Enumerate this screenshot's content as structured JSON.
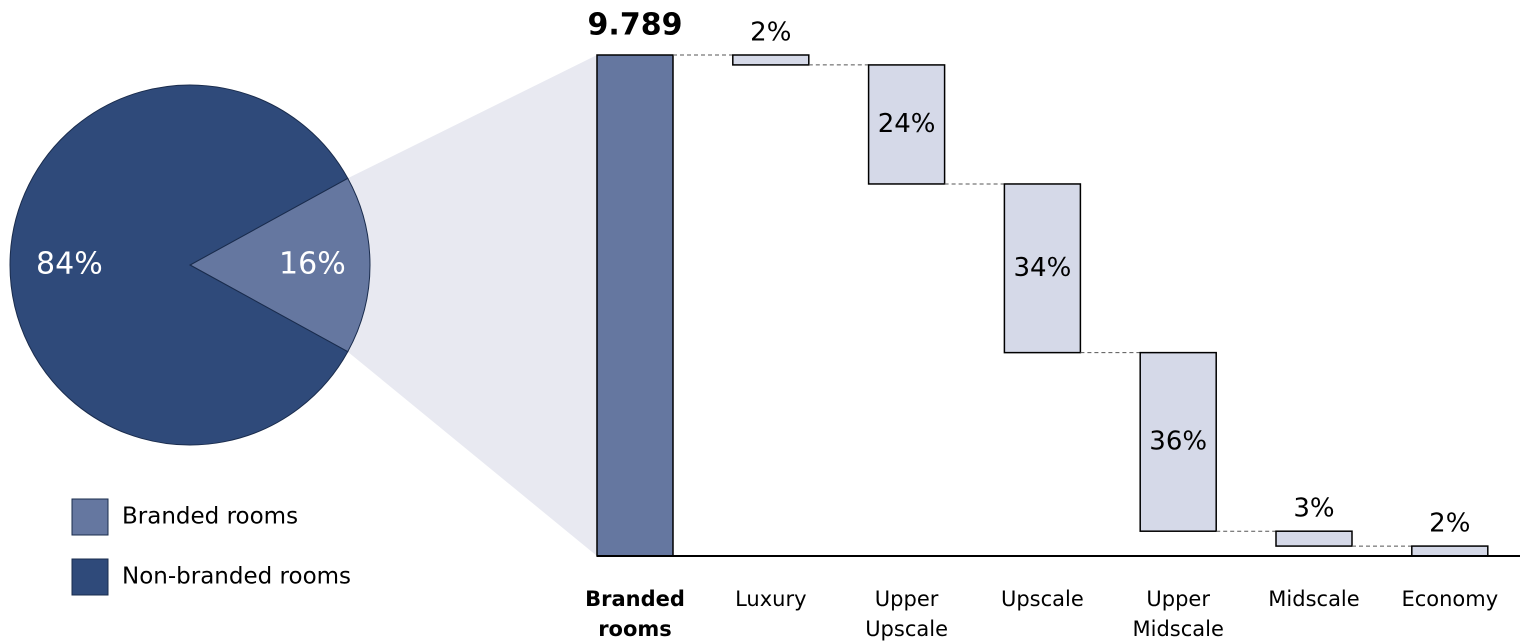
{
  "chart_data": [
    {
      "type": "pie",
      "categories": [
        "Branded rooms",
        "Non-branded rooms"
      ],
      "values": [
        16,
        84
      ],
      "value_labels": [
        "16%",
        "84%"
      ],
      "colors": [
        "#6577a0",
        "#2f4a7a"
      ]
    },
    {
      "type": "waterfall",
      "total_label": "Branded rooms",
      "total": 9.789,
      "total_color": "#6577a0",
      "categories": [
        "Luxury",
        "Upper Upscale",
        "Upscale",
        "Upper Midscale",
        "Midscale",
        "Economy"
      ],
      "values": [
        2,
        24,
        34,
        36,
        3,
        2
      ],
      "value_labels": [
        "2%",
        "24%",
        "34%",
        "36%",
        "3%",
        "2%"
      ],
      "color": "#d5d9e8"
    }
  ]
}
